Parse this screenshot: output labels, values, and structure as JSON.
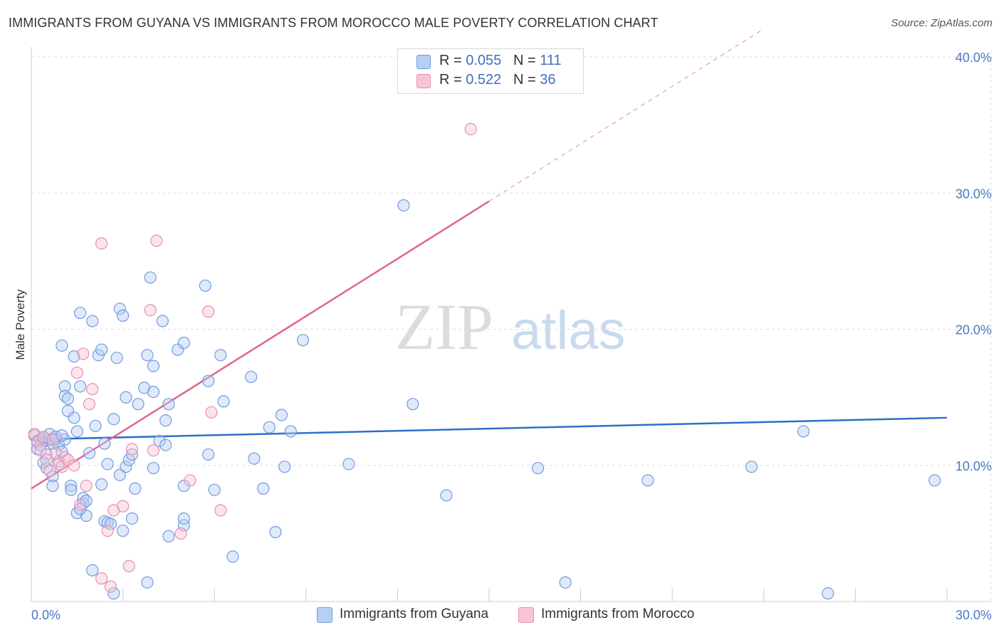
{
  "title": "IMMIGRANTS FROM GUYANA VS IMMIGRANTS FROM MOROCCO MALE POVERTY CORRELATION CHART",
  "source": "Source: ZipAtlas.com",
  "watermark": {
    "zip": "ZIP",
    "atlas": "atlas"
  },
  "legend_top": {
    "rows": [
      {
        "r_label": "R = ",
        "r_value": "0.055",
        "n_label": "N = ",
        "n_value": "111"
      },
      {
        "r_label": "R = ",
        "r_value": "0.522",
        "n_label": "N = ",
        "n_value": "36"
      }
    ]
  },
  "chart_data": {
    "type": "scatter",
    "title": "IMMIGRANTS FROM GUYANA VS IMMIGRANTS FROM MOROCCO MALE POVERTY CORRELATION CHART",
    "xlabel": "",
    "ylabel": "Male Poverty",
    "xlim": [
      0,
      30
    ],
    "ylim": [
      0,
      40
    ],
    "x_tick_labels": [
      "0.0%",
      "30.0%"
    ],
    "y_tick_labels": [
      "10.0%",
      "20.0%",
      "30.0%",
      "40.0%"
    ],
    "y_ticks": [
      10,
      20,
      30,
      40
    ],
    "grid": true,
    "legend_placement": "top-center and bottom",
    "series": [
      {
        "name": "Immigrants from Guyana",
        "color": "#6f9de0",
        "fill": "#b7cff2",
        "r": 0.055,
        "n": 111,
        "trend": {
          "x0": 0,
          "y0": 11.9,
          "x1": 30,
          "y1": 13.5,
          "color": "#2e6fc9"
        },
        "points": [
          [
            0.1,
            12.2
          ],
          [
            0.2,
            11.8
          ],
          [
            0.2,
            11.2
          ],
          [
            0.3,
            11.9
          ],
          [
            0.3,
            11.5
          ],
          [
            0.4,
            12.0
          ],
          [
            0.5,
            11.8
          ],
          [
            0.5,
            10.8
          ],
          [
            0.6,
            11.9
          ],
          [
            0.6,
            12.3
          ],
          [
            0.7,
            11.6
          ],
          [
            0.8,
            11.9
          ],
          [
            0.9,
            11.5
          ],
          [
            0.4,
            10.2
          ],
          [
            0.5,
            9.8
          ],
          [
            0.7,
            9.2
          ],
          [
            0.7,
            8.5
          ],
          [
            0.9,
            10.3
          ],
          [
            1.0,
            11.0
          ],
          [
            1.0,
            18.8
          ],
          [
            1.1,
            15.8
          ],
          [
            1.1,
            15.1
          ],
          [
            1.2,
            14.9
          ],
          [
            1.2,
            14.0
          ],
          [
            1.3,
            8.5
          ],
          [
            1.3,
            8.2
          ],
          [
            1.4,
            13.5
          ],
          [
            1.4,
            18.0
          ],
          [
            1.5,
            12.5
          ],
          [
            1.5,
            6.5
          ],
          [
            1.6,
            15.8
          ],
          [
            1.6,
            21.2
          ],
          [
            1.7,
            7.6
          ],
          [
            1.7,
            7.2
          ],
          [
            1.8,
            6.3
          ],
          [
            1.8,
            7.4
          ],
          [
            1.9,
            10.9
          ],
          [
            2.0,
            20.6
          ],
          [
            2.1,
            12.9
          ],
          [
            2.2,
            18.1
          ],
          [
            2.3,
            18.5
          ],
          [
            2.3,
            8.6
          ],
          [
            2.4,
            11.6
          ],
          [
            2.4,
            5.9
          ],
          [
            2.5,
            5.8
          ],
          [
            2.5,
            10.1
          ],
          [
            2.7,
            13.4
          ],
          [
            2.8,
            17.9
          ],
          [
            2.9,
            21.5
          ],
          [
            2.9,
            9.3
          ],
          [
            3.0,
            21.0
          ],
          [
            3.1,
            9.9
          ],
          [
            3.1,
            15.0
          ],
          [
            3.2,
            10.4
          ],
          [
            3.3,
            10.8
          ],
          [
            3.3,
            6.1
          ],
          [
            3.4,
            8.3
          ],
          [
            3.5,
            14.5
          ],
          [
            3.7,
            15.7
          ],
          [
            3.8,
            18.1
          ],
          [
            3.9,
            23.8
          ],
          [
            4.0,
            17.3
          ],
          [
            4.0,
            15.4
          ],
          [
            4.0,
            9.8
          ],
          [
            4.2,
            11.8
          ],
          [
            4.3,
            20.6
          ],
          [
            4.4,
            11.5
          ],
          [
            4.4,
            13.3
          ],
          [
            4.5,
            14.5
          ],
          [
            4.8,
            18.5
          ],
          [
            5.0,
            19.0
          ],
          [
            5.0,
            5.6
          ],
          [
            5.0,
            6.1
          ],
          [
            5.7,
            23.2
          ],
          [
            5.8,
            10.8
          ],
          [
            5.8,
            16.2
          ],
          [
            6.0,
            8.2
          ],
          [
            6.2,
            18.1
          ],
          [
            6.3,
            14.7
          ],
          [
            6.6,
            3.3
          ],
          [
            7.2,
            16.5
          ],
          [
            7.3,
            10.5
          ],
          [
            7.6,
            8.3
          ],
          [
            7.8,
            12.8
          ],
          [
            8.0,
            5.1
          ],
          [
            8.2,
            13.7
          ],
          [
            8.3,
            9.9
          ],
          [
            8.5,
            12.5
          ],
          [
            8.9,
            19.2
          ],
          [
            10.4,
            10.1
          ],
          [
            12.2,
            29.1
          ],
          [
            12.5,
            14.5
          ],
          [
            13.6,
            7.8
          ],
          [
            16.6,
            9.8
          ],
          [
            17.5,
            1.4
          ],
          [
            20.2,
            8.9
          ],
          [
            23.6,
            9.9
          ],
          [
            25.3,
            12.5
          ],
          [
            26.1,
            0.6
          ],
          [
            29.6,
            8.9
          ],
          [
            3.8,
            1.4
          ],
          [
            2.0,
            2.3
          ],
          [
            2.7,
            0.6
          ],
          [
            4.5,
            4.8
          ],
          [
            5.0,
            8.5
          ],
          [
            1.1,
            11.9
          ],
          [
            0.8,
            12.1
          ],
          [
            1.0,
            12.2
          ],
          [
            2.6,
            5.7
          ],
          [
            3.0,
            5.2
          ],
          [
            1.6,
            6.8
          ]
        ]
      },
      {
        "name": "Immigrants from Morocco",
        "color": "#e98fac",
        "fill": "#f7c5d4",
        "r": 0.522,
        "n": 36,
        "trend": {
          "x0": 0,
          "y0": 8.3,
          "x1": 15,
          "y1": 29.4,
          "color": "#e0658f",
          "dashed_extension_to_y": 42
        },
        "points": [
          [
            0.1,
            12.3
          ],
          [
            0.2,
            11.7
          ],
          [
            0.3,
            11.1
          ],
          [
            0.4,
            12.1
          ],
          [
            0.5,
            10.4
          ],
          [
            0.6,
            9.6
          ],
          [
            0.7,
            11.9
          ],
          [
            0.8,
            10.9
          ],
          [
            0.9,
            10.1
          ],
          [
            1.0,
            9.9
          ],
          [
            1.1,
            10.6
          ],
          [
            1.2,
            10.4
          ],
          [
            1.4,
            10.0
          ],
          [
            1.5,
            16.8
          ],
          [
            1.6,
            7.1
          ],
          [
            1.7,
            18.2
          ],
          [
            1.8,
            8.5
          ],
          [
            1.9,
            14.5
          ],
          [
            2.0,
            15.6
          ],
          [
            2.3,
            1.7
          ],
          [
            2.3,
            26.3
          ],
          [
            2.5,
            5.2
          ],
          [
            2.6,
            1.1
          ],
          [
            2.7,
            6.7
          ],
          [
            3.0,
            7.0
          ],
          [
            3.2,
            2.6
          ],
          [
            3.3,
            11.2
          ],
          [
            3.9,
            21.4
          ],
          [
            4.1,
            26.5
          ],
          [
            4.9,
            5.0
          ],
          [
            5.2,
            8.9
          ],
          [
            5.8,
            21.3
          ],
          [
            5.9,
            13.9
          ],
          [
            6.2,
            6.7
          ],
          [
            14.4,
            34.7
          ],
          [
            4.0,
            11.1
          ]
        ]
      }
    ]
  },
  "legend_bottom": {
    "items": [
      {
        "label": "Immigrants from Guyana"
      },
      {
        "label": "Immigrants from Morocco"
      }
    ]
  }
}
